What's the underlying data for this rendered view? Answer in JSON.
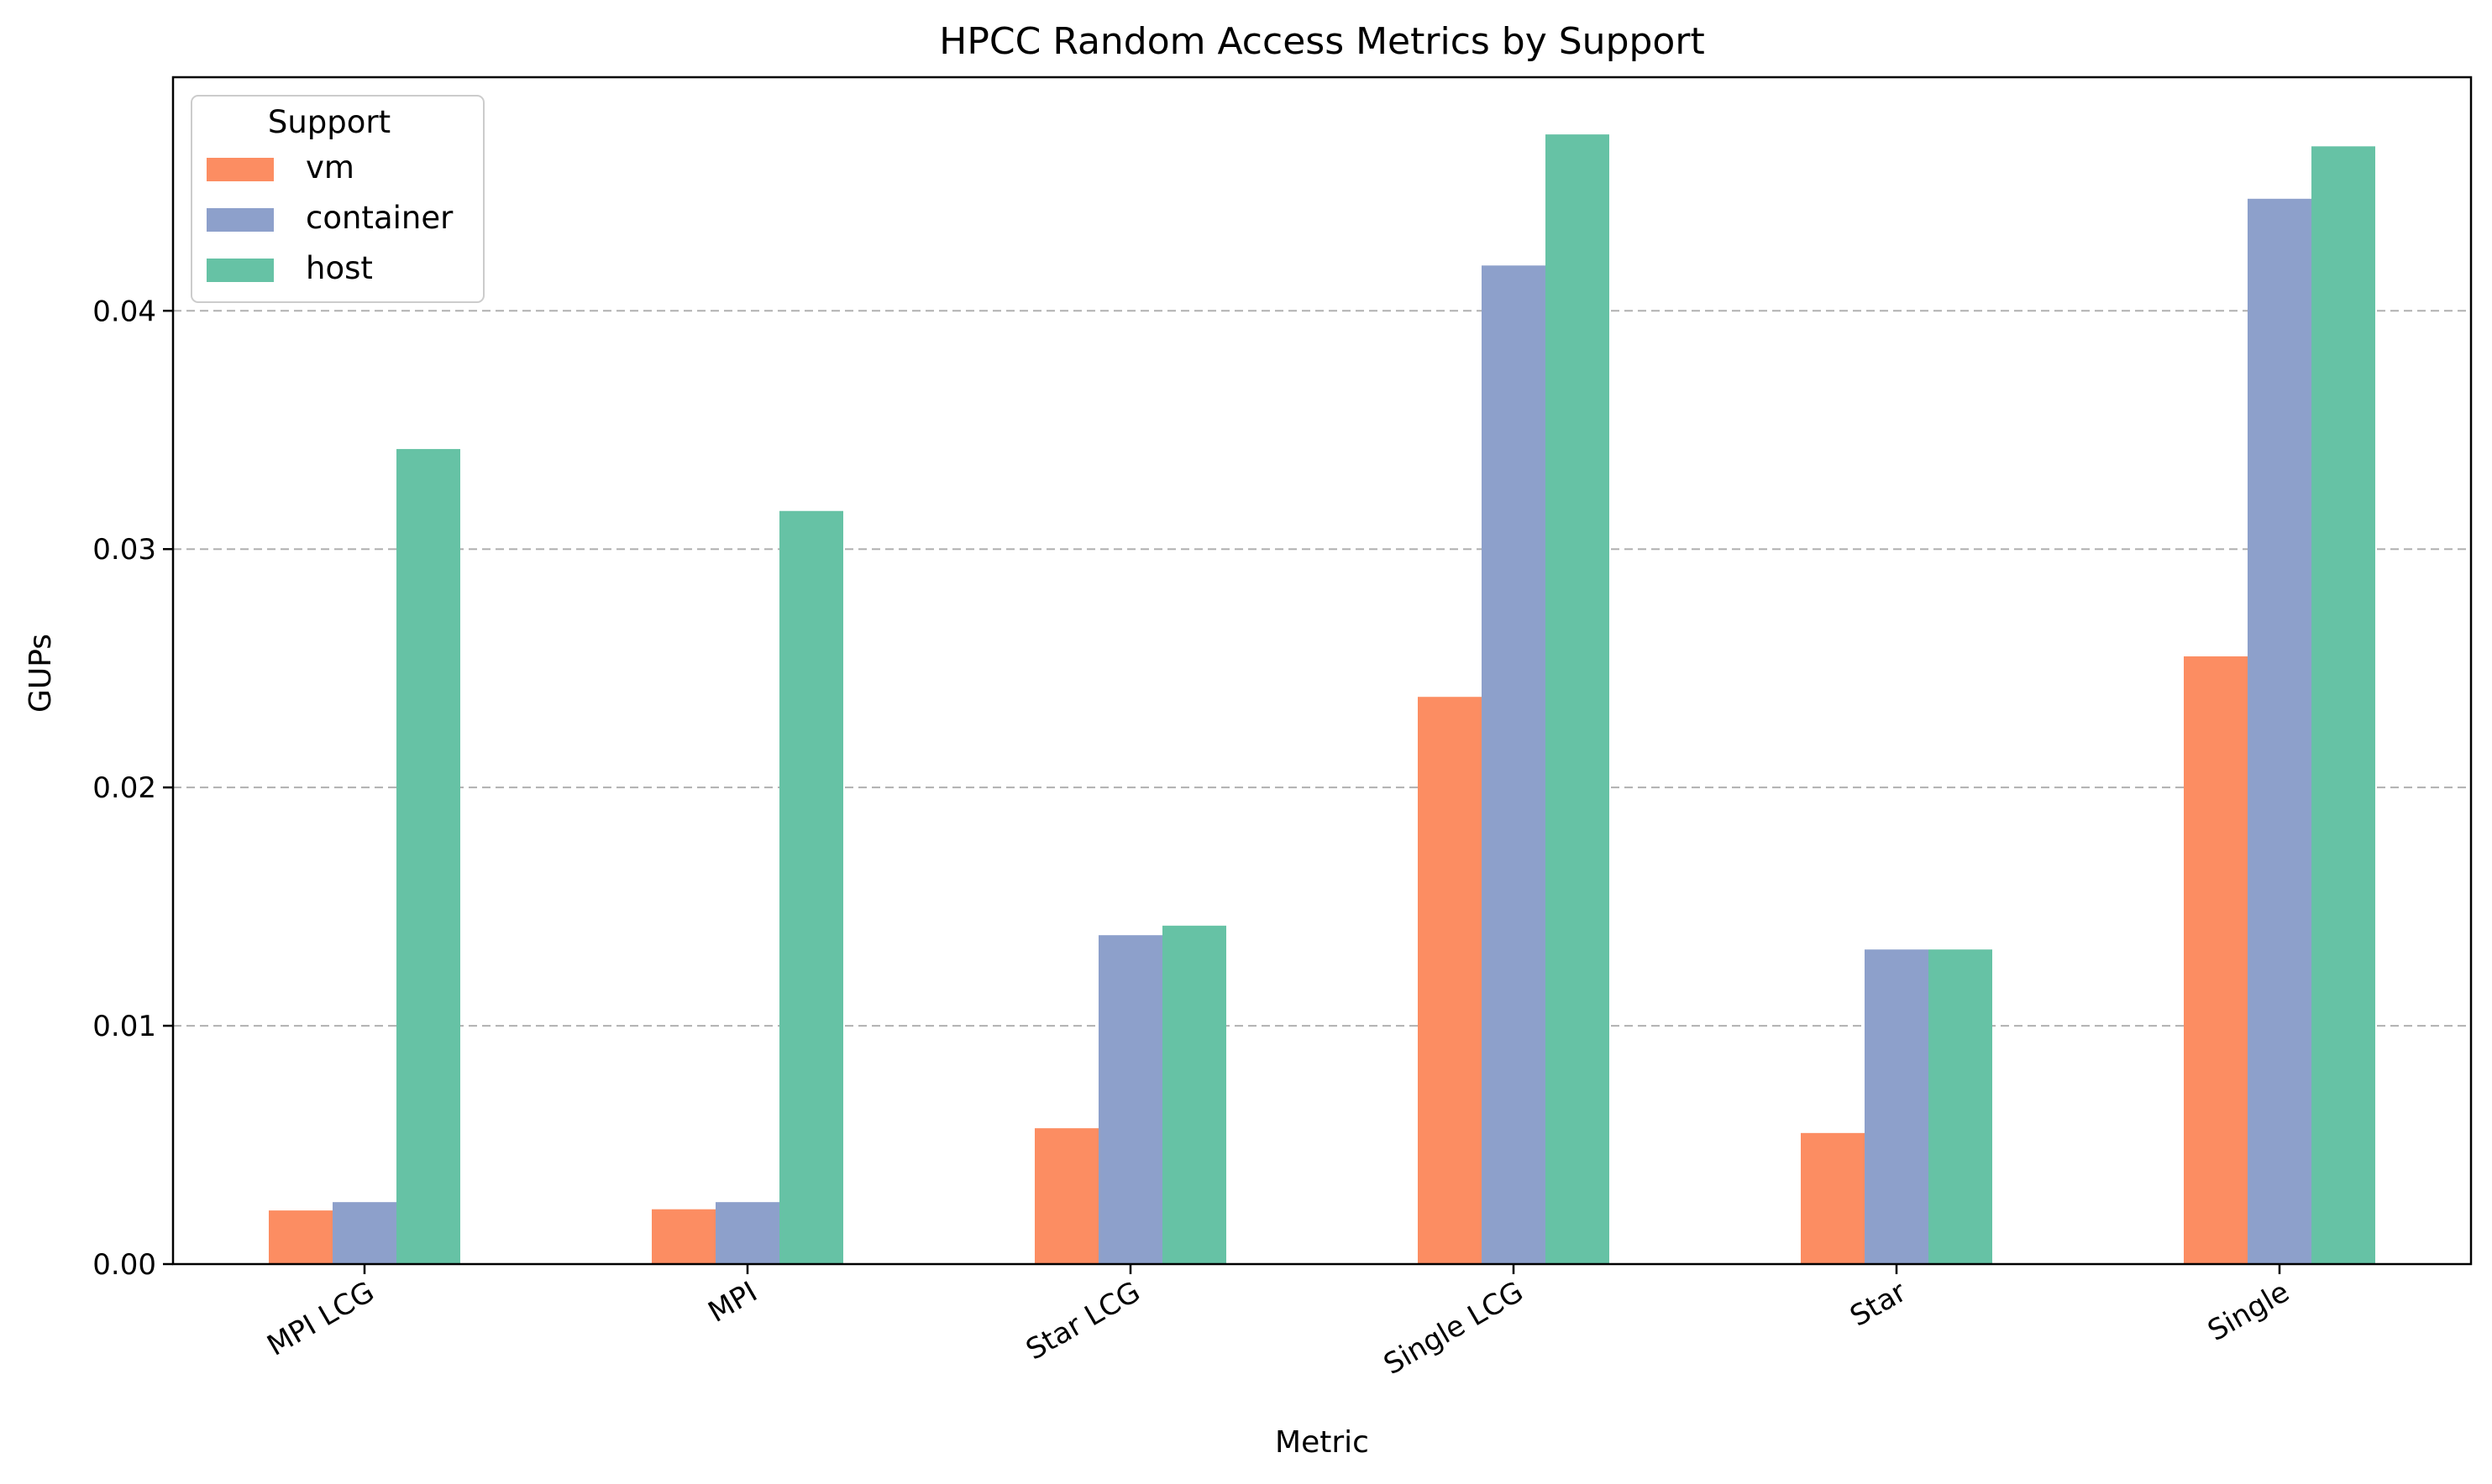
{
  "chart_data": {
    "type": "bar",
    "title": "HPCC Random Access Metrics by Support",
    "xlabel": "Metric",
    "ylabel": "GUPs",
    "ylim": [
      0,
      0.0498
    ],
    "yticks": [
      "0.00",
      "0.01",
      "0.02",
      "0.03",
      "0.04"
    ],
    "ytick_values": [
      0,
      0.01,
      0.02,
      0.03,
      0.04
    ],
    "grid": "y-dashed",
    "legend_title": "Support",
    "legend_position": "top-left",
    "categories": [
      "MPI LCG",
      "MPI",
      "Star LCG",
      "Single LCG",
      "Star",
      "Single"
    ],
    "series": [
      {
        "name": "vm",
        "color": "#fc8d62",
        "values": [
          0.00225,
          0.0023,
          0.0057,
          0.0238,
          0.0055,
          0.0255
        ]
      },
      {
        "name": "container",
        "color": "#8da0cb",
        "values": [
          0.0026,
          0.0026,
          0.0138,
          0.0419,
          0.0132,
          0.0447
        ]
      },
      {
        "name": "host",
        "color": "#66c2a5",
        "values": [
          0.0342,
          0.0316,
          0.0142,
          0.0474,
          0.0132,
          0.0469
        ]
      }
    ]
  }
}
